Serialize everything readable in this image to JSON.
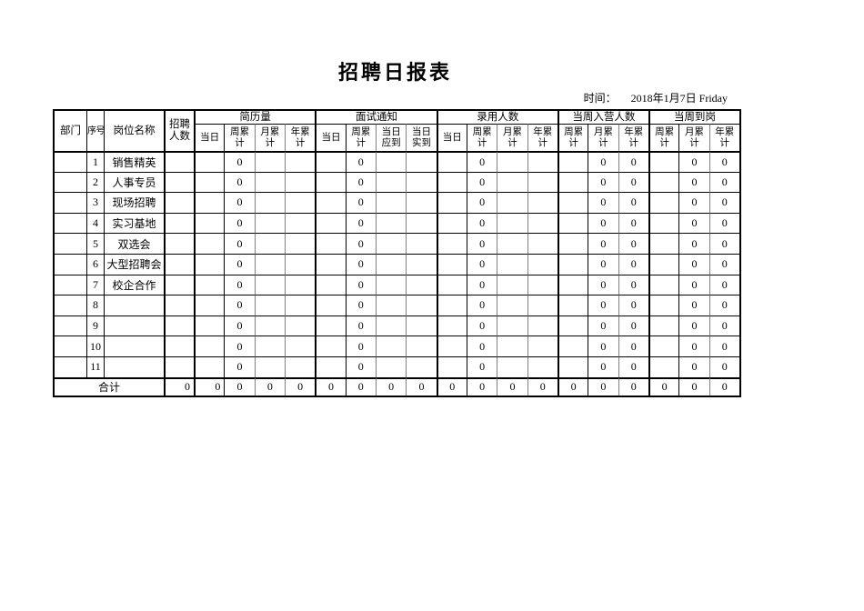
{
  "page": {
    "title": "招聘日报表",
    "time_label": "时间：",
    "time_value": "2018年1月7日 Friday"
  },
  "table": {
    "header": {
      "dept": "部门",
      "seq": "序号",
      "position": "岗位名称",
      "headcount": "招聘人数",
      "groups": [
        {
          "label": "简历量",
          "cols": [
            "当日",
            "周累计",
            "月累计",
            "年累计"
          ]
        },
        {
          "label": "面试通知",
          "cols": [
            "当日",
            "周累计",
            "当日应到",
            "当日实到"
          ]
        },
        {
          "label": "录用人数",
          "cols": [
            "当日",
            "周累计",
            "月累计",
            "年累计"
          ]
        },
        {
          "label": "当周入营人数",
          "cols": [
            "周累计",
            "月累计",
            "年累计"
          ]
        },
        {
          "label": "当周到岗",
          "cols": [
            "周累计",
            "月累计",
            "年累计"
          ]
        }
      ]
    },
    "rows": [
      {
        "dept": "",
        "seq": "1",
        "position": "销售精英",
        "headcount": "",
        "values": [
          "",
          "0",
          "",
          "",
          "",
          "0",
          "",
          "",
          "",
          "0",
          "",
          "",
          "",
          "0",
          "0",
          "",
          "0",
          "0"
        ]
      },
      {
        "dept": "",
        "seq": "2",
        "position": "人事专员",
        "headcount": "",
        "values": [
          "",
          "0",
          "",
          "",
          "",
          "0",
          "",
          "",
          "",
          "0",
          "",
          "",
          "",
          "0",
          "0",
          "",
          "0",
          "0"
        ]
      },
      {
        "dept": "",
        "seq": "3",
        "position": "现场招聘",
        "headcount": "",
        "values": [
          "",
          "0",
          "",
          "",
          "",
          "0",
          "",
          "",
          "",
          "0",
          "",
          "",
          "",
          "0",
          "0",
          "",
          "0",
          "0"
        ]
      },
      {
        "dept": "",
        "seq": "4",
        "position": "实习基地",
        "headcount": "",
        "values": [
          "",
          "0",
          "",
          "",
          "",
          "0",
          "",
          "",
          "",
          "0",
          "",
          "",
          "",
          "0",
          "0",
          "",
          "0",
          "0"
        ]
      },
      {
        "dept": "",
        "seq": "5",
        "position": "双选会",
        "headcount": "",
        "values": [
          "",
          "0",
          "",
          "",
          "",
          "0",
          "",
          "",
          "",
          "0",
          "",
          "",
          "",
          "0",
          "0",
          "",
          "0",
          "0"
        ]
      },
      {
        "dept": "",
        "seq": "6",
        "position": "大型招聘会",
        "headcount": "",
        "values": [
          "",
          "0",
          "",
          "",
          "",
          "0",
          "",
          "",
          "",
          "0",
          "",
          "",
          "",
          "0",
          "0",
          "",
          "0",
          "0"
        ]
      },
      {
        "dept": "",
        "seq": "7",
        "position": "校企合作",
        "headcount": "",
        "values": [
          "",
          "0",
          "",
          "",
          "",
          "0",
          "",
          "",
          "",
          "0",
          "",
          "",
          "",
          "0",
          "0",
          "",
          "0",
          "0"
        ]
      },
      {
        "dept": "",
        "seq": "8",
        "position": "",
        "headcount": "",
        "values": [
          "",
          "0",
          "",
          "",
          "",
          "0",
          "",
          "",
          "",
          "0",
          "",
          "",
          "",
          "0",
          "0",
          "",
          "0",
          "0"
        ]
      },
      {
        "dept": "",
        "seq": "9",
        "position": "",
        "headcount": "",
        "values": [
          "",
          "0",
          "",
          "",
          "",
          "0",
          "",
          "",
          "",
          "0",
          "",
          "",
          "",
          "0",
          "0",
          "",
          "0",
          "0"
        ]
      },
      {
        "dept": "",
        "seq": "10",
        "position": "",
        "headcount": "",
        "values": [
          "",
          "0",
          "",
          "",
          "",
          "0",
          "",
          "",
          "",
          "0",
          "",
          "",
          "",
          "0",
          "0",
          "",
          "0",
          "0"
        ]
      },
      {
        "dept": "",
        "seq": "11",
        "position": "",
        "headcount": "",
        "values": [
          "",
          "0",
          "",
          "",
          "",
          "0",
          "",
          "",
          "",
          "0",
          "",
          "",
          "",
          "0",
          "0",
          "",
          "0",
          "0"
        ]
      }
    ],
    "total": {
      "label": "合计",
      "headcount": "0",
      "values": [
        "0",
        "0",
        "0",
        "0",
        "0",
        "0",
        "0",
        "0",
        "0",
        "0",
        "0",
        "0",
        "0",
        "0",
        "0",
        "0",
        "0",
        "0"
      ]
    }
  },
  "colors": {
    "background": "#ffffff",
    "text": "#000000",
    "border": "#000000",
    "grid_gray": "#818181"
  }
}
